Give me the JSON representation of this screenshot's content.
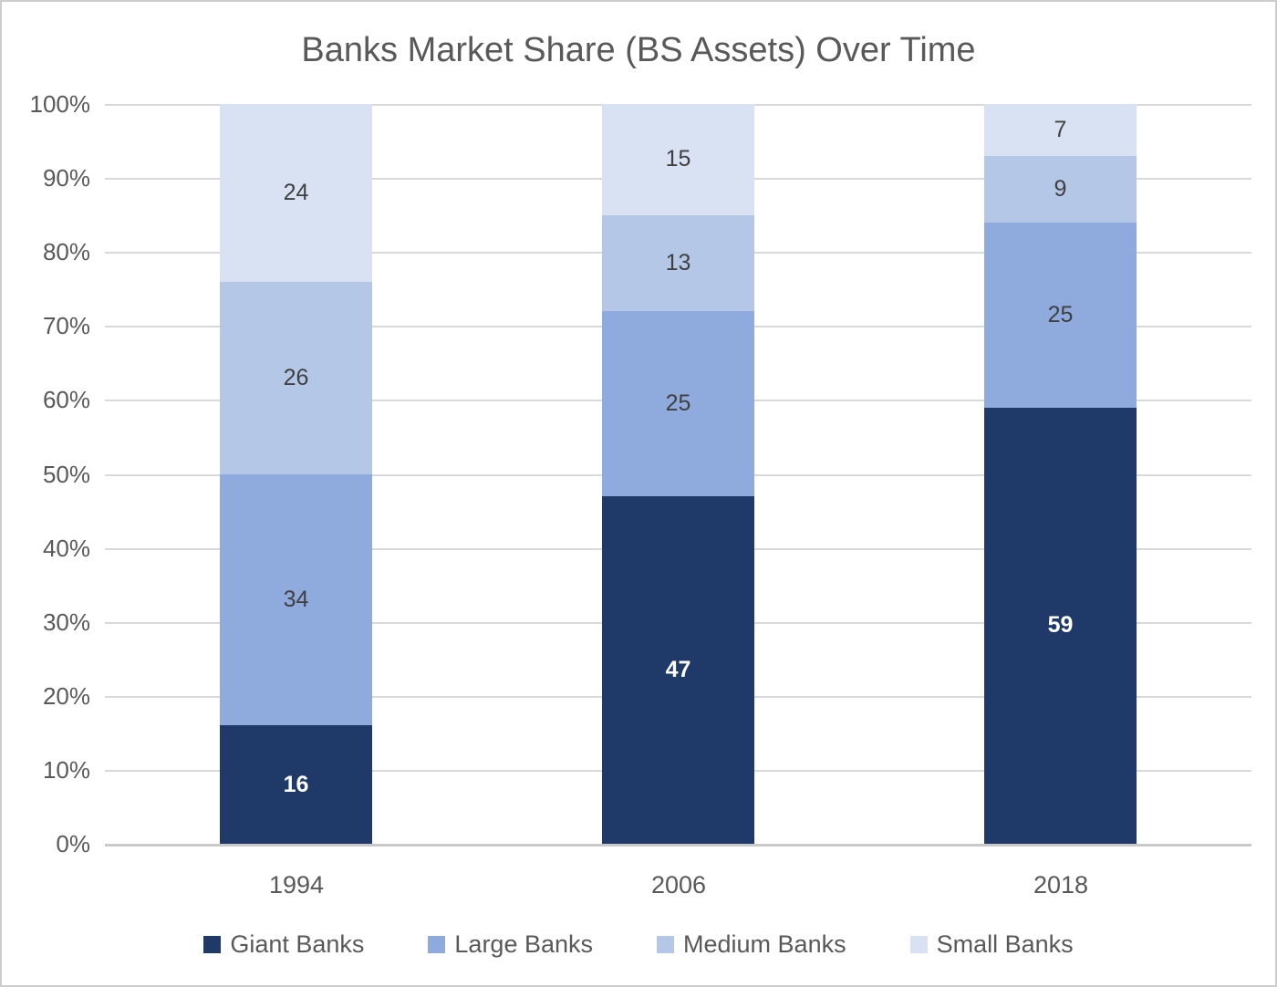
{
  "chart_data": {
    "type": "bar",
    "stacked": true,
    "title": "Banks Market Share (BS Assets) Over Time",
    "categories": [
      "1994",
      "2006",
      "2018"
    ],
    "series": [
      {
        "name": "Giant Banks",
        "color": "#1f3a68",
        "label_color": "#ffffff",
        "label_bold": true,
        "values": [
          16,
          47,
          59
        ]
      },
      {
        "name": "Large Banks",
        "color": "#8faadc",
        "label_color": "#404040",
        "label_bold": false,
        "values": [
          34,
          25,
          25
        ]
      },
      {
        "name": "Medium Banks",
        "color": "#b4c7e7",
        "label_color": "#404040",
        "label_bold": false,
        "values": [
          26,
          13,
          9
        ]
      },
      {
        "name": "Small Banks",
        "color": "#d9e2f3",
        "label_color": "#404040",
        "label_bold": false,
        "values": [
          24,
          15,
          7
        ]
      }
    ],
    "ylim": [
      0,
      100
    ],
    "y_tick_labels": [
      "0%",
      "10%",
      "20%",
      "30%",
      "40%",
      "50%",
      "60%",
      "70%",
      "80%",
      "90%",
      "100%"
    ],
    "grid": true,
    "legend_position": "bottom",
    "colors": {
      "title_text": "#595959",
      "axis_text": "#595959",
      "gridline": "#d9d9d9",
      "axis_line": "#c9c9c9",
      "background": "#ffffff"
    }
  }
}
